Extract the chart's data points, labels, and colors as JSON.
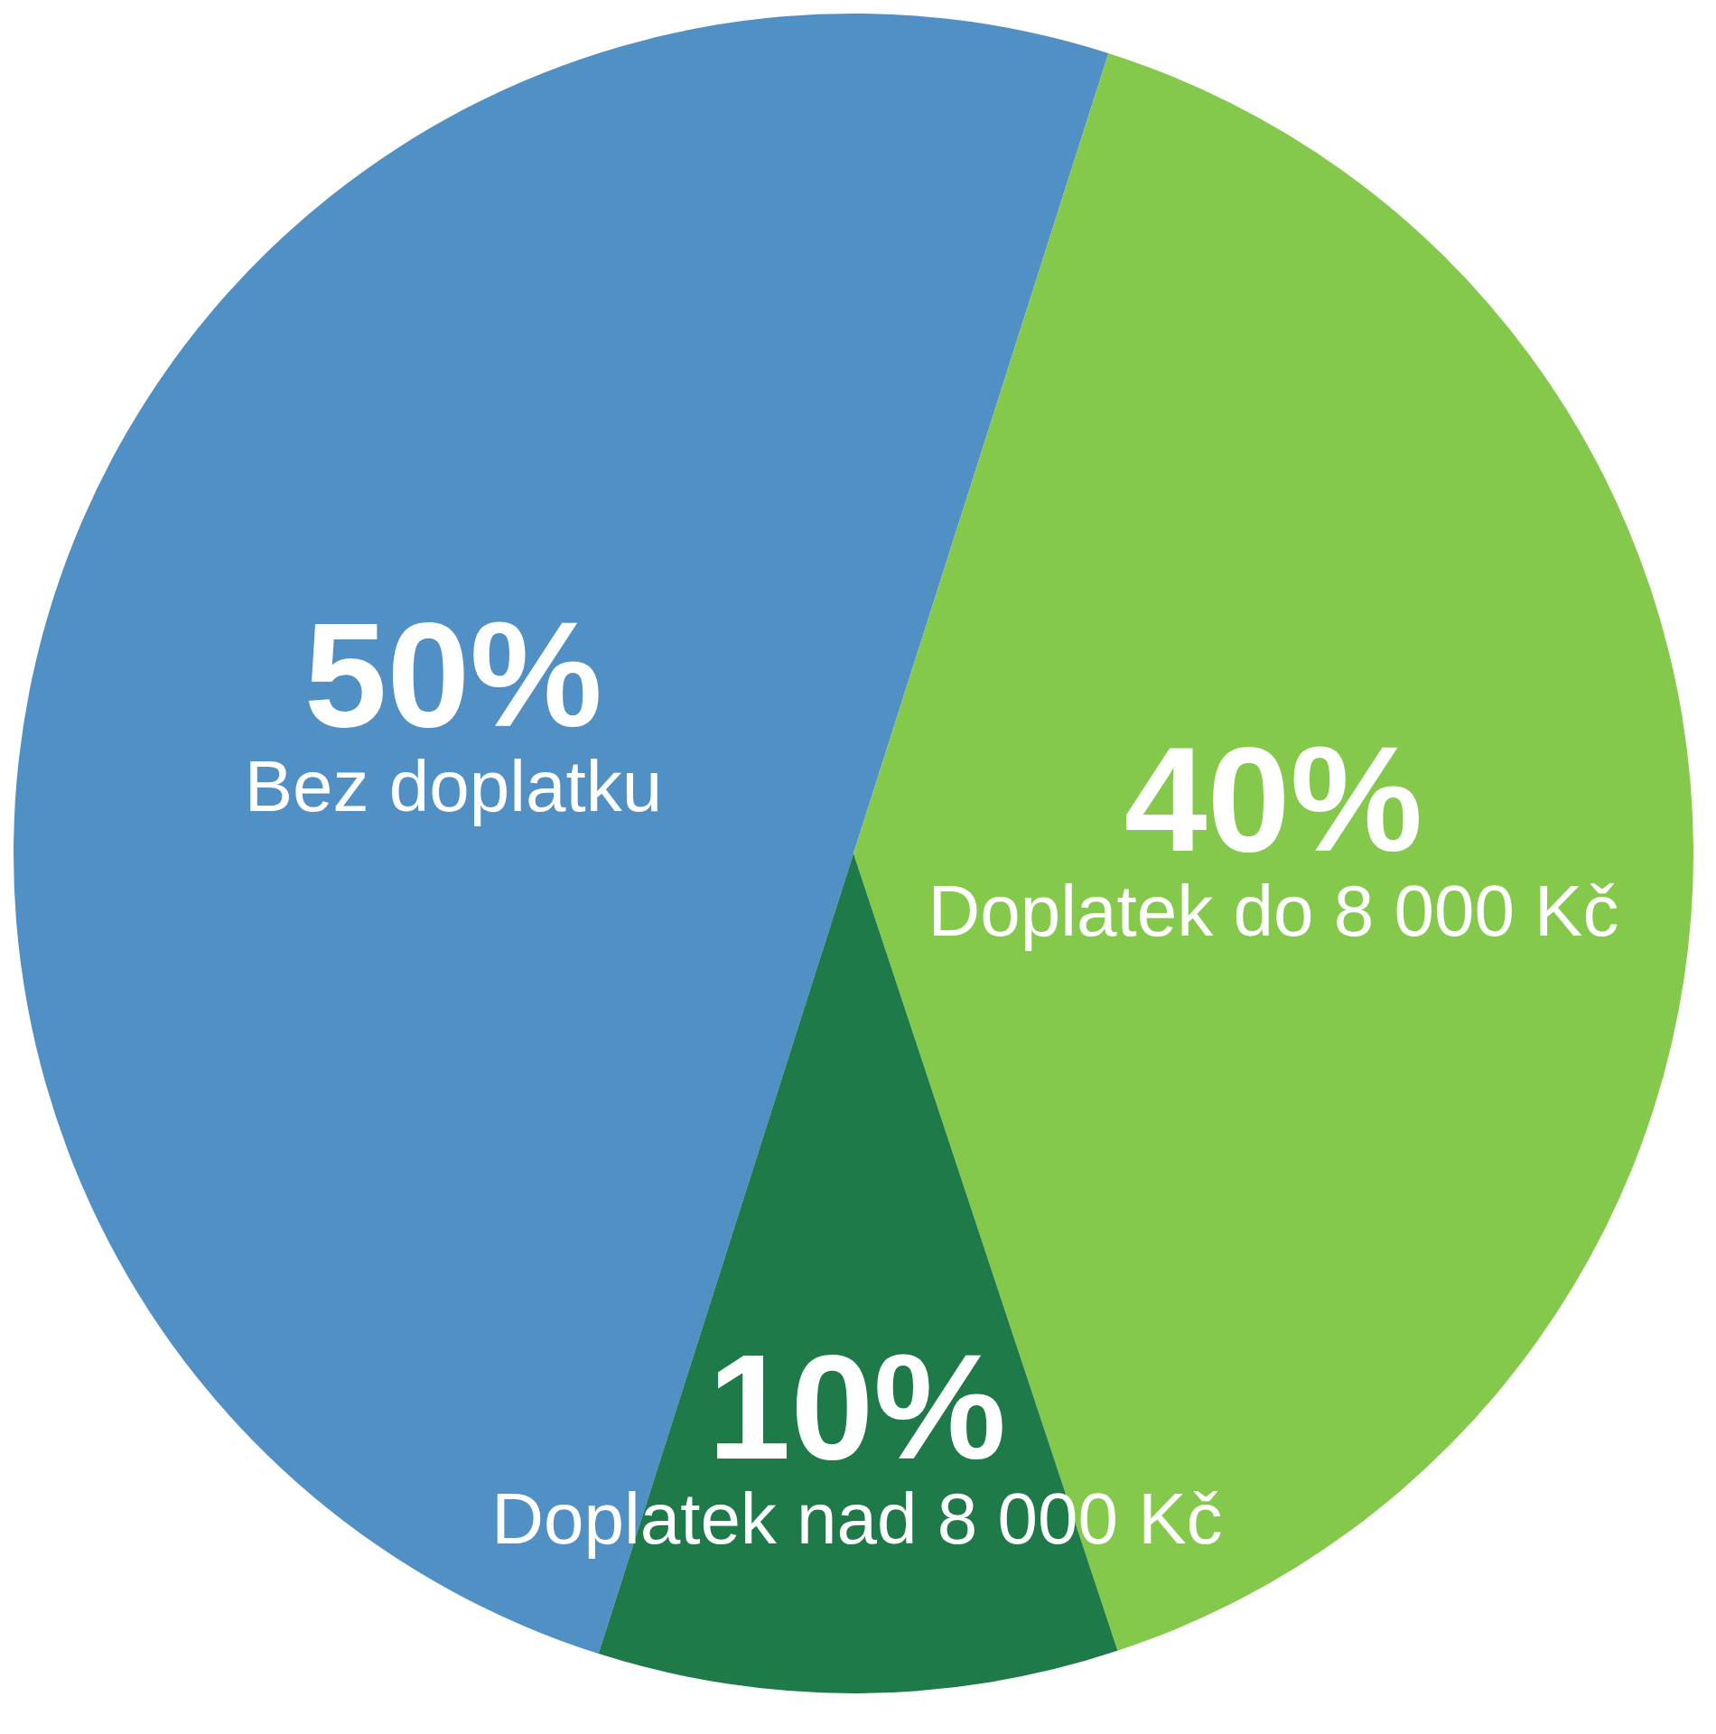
{
  "chart_data": {
    "type": "pie",
    "categories": [
      "Bez doplatku",
      "Doplatek do 8 000 Kč",
      "Doplatek nad 8 000 Kč"
    ],
    "values": [
      50,
      40,
      10
    ],
    "value_labels": [
      "50%",
      "40%",
      "10%"
    ],
    "colors": [
      "#5090c4",
      "#84c84c",
      "#1f7a4a"
    ],
    "legend": false
  }
}
